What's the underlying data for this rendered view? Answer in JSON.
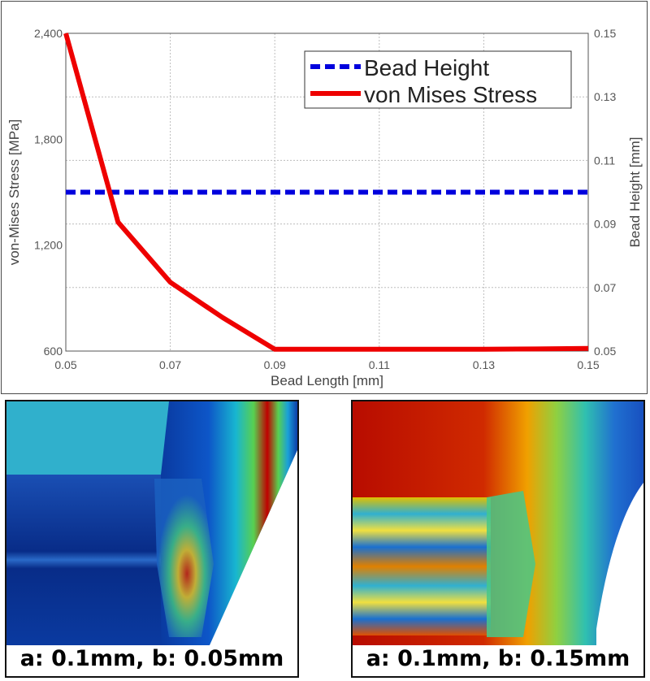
{
  "chart_data": {
    "type": "line",
    "xlabel": "Bead Length [mm]",
    "ylabel_left": "von-Mises Stress [MPa]",
    "ylabel_right": "Bead Height [mm]",
    "xlim": [
      0.05,
      0.15
    ],
    "ylim_left": [
      600,
      2400
    ],
    "ylim_right": [
      0.05,
      0.15
    ],
    "x_ticks": [
      "0.05",
      "0.07",
      "0.09",
      "0.11",
      "0.13",
      "0.15"
    ],
    "y_left_ticks": [
      "600",
      "1,200",
      "1,800",
      "2,400"
    ],
    "y_right_ticks": [
      "0.05",
      "0.07",
      "0.09",
      "0.11",
      "0.13",
      "0.15"
    ],
    "grid": true,
    "legend_position": "top-right",
    "series": [
      {
        "name": "Bead Height",
        "axis": "right",
        "style": "dashed",
        "color": "#0000dd",
        "x": [
          0.05,
          0.15
        ],
        "values": [
          0.1,
          0.1
        ]
      },
      {
        "name": "von Mises Stress",
        "axis": "left",
        "style": "solid",
        "color": "#ee0000",
        "x": [
          0.05,
          0.06,
          0.07,
          0.08,
          0.09,
          0.1,
          0.11,
          0.12,
          0.13,
          0.14,
          0.15
        ],
        "values": [
          2400,
          1330,
          990,
          790,
          610,
          610,
          610,
          610,
          610,
          612,
          615
        ]
      }
    ]
  },
  "panels": [
    {
      "caption": "a: 0.1mm, b: 0.05mm"
    },
    {
      "caption": "a: 0.1mm, b: 0.15mm"
    }
  ]
}
